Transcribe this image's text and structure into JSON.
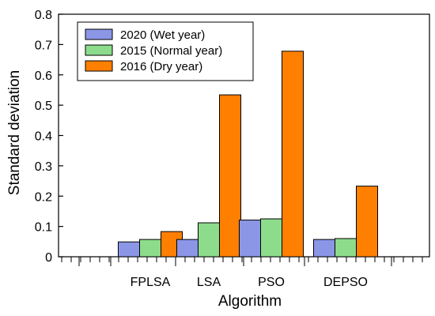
{
  "chart_data": {
    "type": "bar",
    "xlabel": "Algorithm",
    "ylabel": "Standard deviation",
    "ylim": [
      0,
      0.8
    ],
    "yticks": [
      "0",
      "0.1",
      "0.2",
      "0.3",
      "0.4",
      "0.5",
      "0.6",
      "0.7",
      "0.8"
    ],
    "categories": [
      "FPLSA",
      "LSA",
      "PSO",
      "DEPSO"
    ],
    "series": [
      {
        "name": "2020 (Wet year)",
        "color": "#8c96e6",
        "values": [
          0.049,
          0.057,
          0.121,
          0.057
        ]
      },
      {
        "name": "2015 (Normal year)",
        "color": "#8cdc8c",
        "values": [
          0.057,
          0.112,
          0.125,
          0.06
        ]
      },
      {
        "name": "2016 (Dry year)",
        "color": "#ff7f00",
        "values": [
          0.083,
          0.534,
          0.678,
          0.233
        ]
      }
    ],
    "legend_position": "top-left",
    "grid": false
  }
}
